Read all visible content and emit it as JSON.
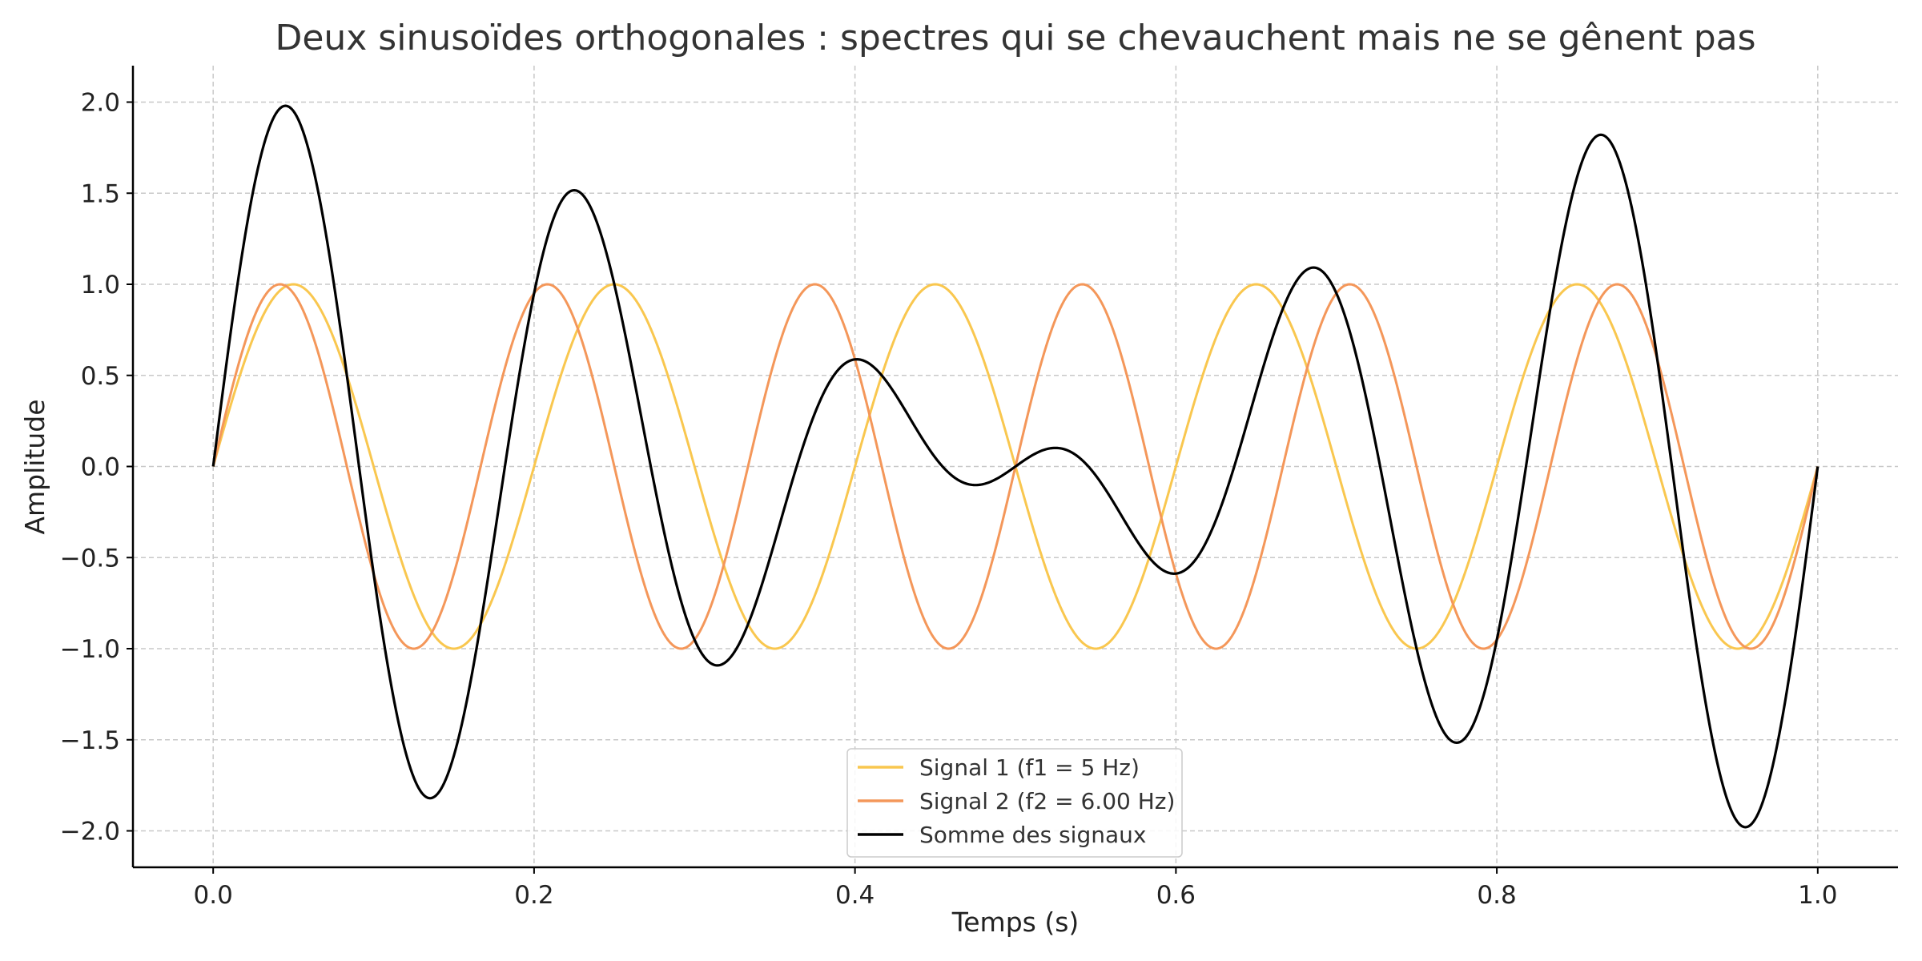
{
  "chart_data": {
    "type": "line",
    "title": "Deux sinusoïdes orthogonales : spectres qui se chevauchent mais ne se gênent pas",
    "xlabel": "Temps (s)",
    "ylabel": "Amplitude",
    "xlim": [
      -0.05,
      1.05
    ],
    "ylim": [
      -2.2,
      2.2
    ],
    "xticks": [
      0.0,
      0.2,
      0.4,
      0.6,
      0.8,
      1.0
    ],
    "xtick_labels": [
      "0.0",
      "0.2",
      "0.4",
      "0.6",
      "0.8",
      "1.0"
    ],
    "yticks": [
      2.0,
      1.5,
      1.0,
      0.5,
      0.0,
      -0.5,
      -1.0,
      -1.5,
      -2.0
    ],
    "ytick_labels": [
      "2.0",
      "1.5",
      "1.0",
      "0.5",
      "0.0",
      "−0.5",
      "−1.0",
      "−1.5",
      "−2.0"
    ],
    "grid": true,
    "legend_position": "bottom-center",
    "series": [
      {
        "name": "Signal 1 (f1 = 5 Hz)",
        "color": "#f9c74f",
        "frequency_hz": 5,
        "function": "sin(2*pi*f*t)",
        "t_range": [
          0,
          1
        ]
      },
      {
        "name": "Signal 2 (f2 = 6.00 Hz)",
        "color": "#f4975a",
        "frequency_hz": 6,
        "function": "sin(2*pi*f*t)",
        "t_range": [
          0,
          1
        ]
      },
      {
        "name": "Somme des signaux",
        "color": "#000000",
        "function": "sin(2*pi*5*t) + sin(2*pi*6*t)",
        "t_range": [
          0,
          1
        ]
      }
    ]
  }
}
